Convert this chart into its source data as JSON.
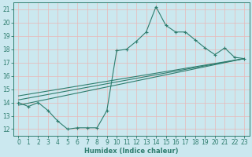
{
  "xlabel": "Humidex (Indice chaleur)",
  "background_color": "#cbe8ef",
  "grid_color": "#f0d8d8",
  "line_color": "#2e7d6e",
  "xlim": [
    -0.5,
    23.5
  ],
  "ylim": [
    11.5,
    21.5
  ],
  "xticks": [
    0,
    1,
    2,
    3,
    4,
    5,
    6,
    7,
    8,
    9,
    10,
    11,
    12,
    13,
    14,
    15,
    16,
    17,
    18,
    19,
    20,
    21,
    22,
    23
  ],
  "yticks": [
    12,
    13,
    14,
    15,
    16,
    17,
    18,
    19,
    20,
    21
  ],
  "line1_x": [
    0,
    1,
    2,
    3,
    4,
    5,
    6,
    7,
    8,
    9,
    10,
    11,
    12,
    13,
    14,
    15,
    16,
    17,
    18,
    19,
    20,
    21,
    22,
    23
  ],
  "line1_y": [
    14.0,
    13.7,
    14.0,
    13.4,
    12.6,
    12.0,
    12.1,
    12.1,
    12.1,
    13.4,
    17.9,
    18.0,
    18.6,
    19.3,
    21.2,
    19.8,
    19.3,
    19.3,
    18.7,
    18.1,
    17.6,
    18.1,
    17.4,
    17.3
  ],
  "line2_x": [
    0,
    23
  ],
  "line2_y": [
    13.8,
    17.3
  ],
  "line3_x": [
    0,
    23
  ],
  "line3_y": [
    14.2,
    17.3
  ],
  "line4_x": [
    0,
    23
  ],
  "line4_y": [
    14.5,
    17.3
  ]
}
